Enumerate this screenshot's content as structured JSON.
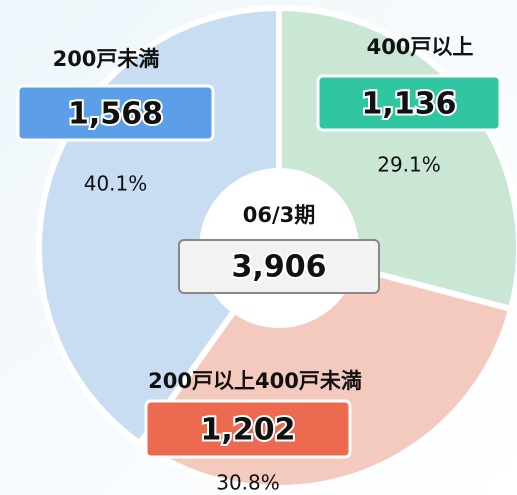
{
  "chart_data": {
    "type": "pie",
    "categories": [
      "400戸以上",
      "200戸以上400戸未満",
      "200戸未満"
    ],
    "values": [
      1136,
      1202,
      1568
    ],
    "value_labels": [
      "1,136",
      "1,202",
      "1,568"
    ],
    "percent_values": [
      29.1,
      30.8,
      40.1
    ],
    "percent_labels": [
      "29.1%",
      "30.8%",
      "40.1%"
    ],
    "slice_colors": [
      "#c9e7d4",
      "#f3cabd",
      "#c8ddf1"
    ],
    "box_colors": [
      "#2fc6a1",
      "#ec6a50",
      "#5c9fe8"
    ],
    "center_label": "06/3期",
    "total": 3906,
    "total_label": "3,906"
  }
}
